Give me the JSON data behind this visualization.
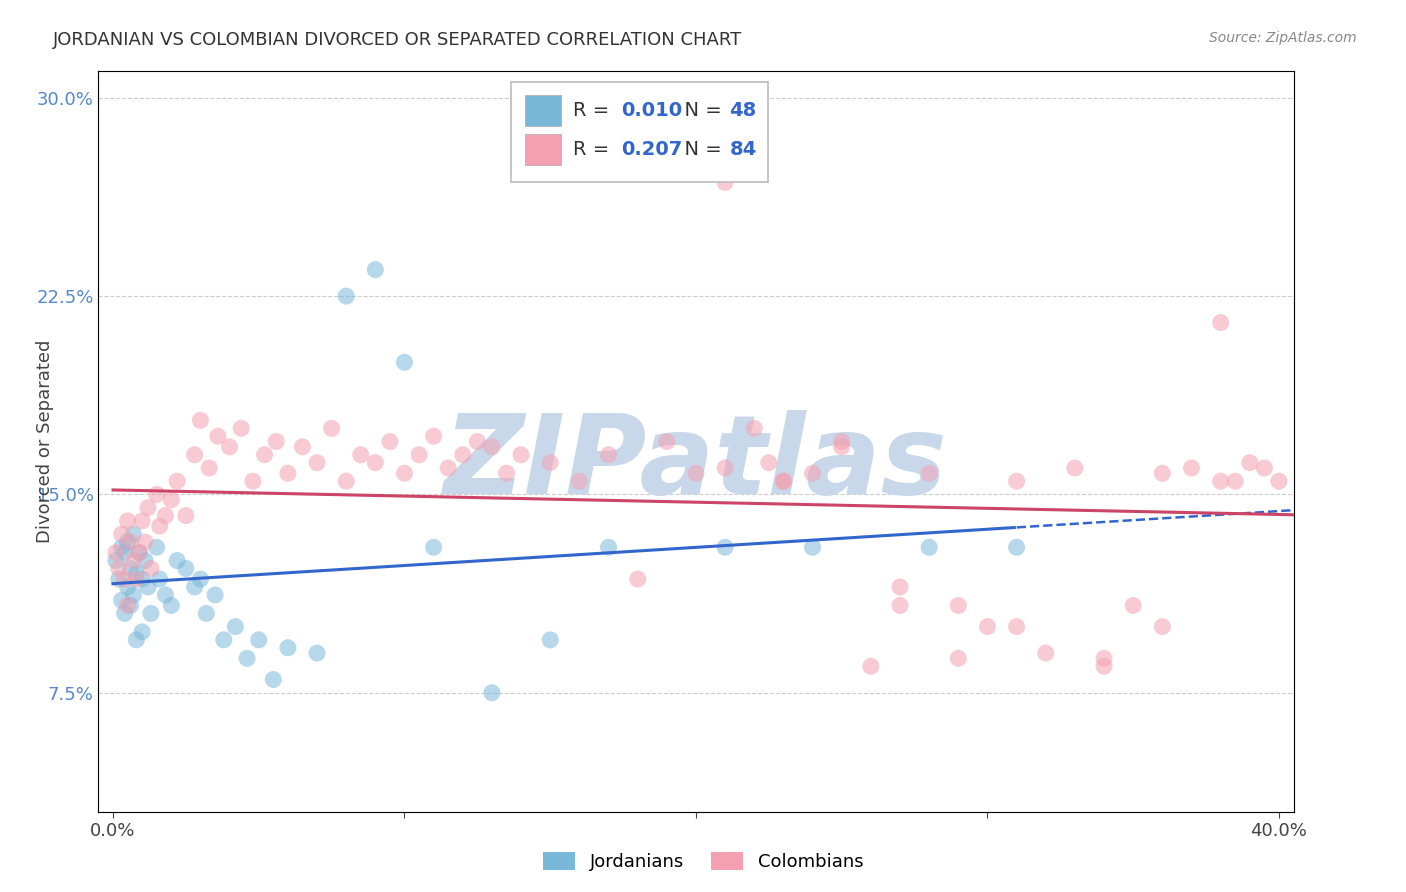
{
  "title": "JORDANIAN VS COLOMBIAN DIVORCED OR SEPARATED CORRELATION CHART",
  "source": "Source: ZipAtlas.com",
  "ylabel": "Divorced or Separated",
  "xlim": [
    -0.005,
    0.405
  ],
  "ylim": [
    0.03,
    0.31
  ],
  "xticks": [
    0.0,
    0.1,
    0.2,
    0.3,
    0.4
  ],
  "xtick_labels": [
    "0.0%",
    "",
    "",
    "",
    "40.0%"
  ],
  "yticks": [
    0.075,
    0.15,
    0.225,
    0.3
  ],
  "ytick_labels": [
    "7.5%",
    "15.0%",
    "22.5%",
    "30.0%"
  ],
  "jordanian_color": "#7ab8d9",
  "colombian_color": "#f4a0b0",
  "jordanian_line_color": "#3366cc",
  "colombian_line_color": "#cc4466",
  "R_jordanian": 0.01,
  "N_jordanian": 48,
  "R_colombian": 0.207,
  "N_colombian": 84,
  "watermark": "ZIPatlas",
  "watermark_color": "#c8d8ea",
  "background_color": "#ffffff",
  "legend_text_color": "#3366cc",
  "legend_r_color": "#3366cc",
  "legend_n_color": "#3366cc",
  "jordanians_x": [
    0.001,
    0.002,
    0.003,
    0.003,
    0.004,
    0.004,
    0.005,
    0.005,
    0.006,
    0.006,
    0.007,
    0.007,
    0.008,
    0.008,
    0.009,
    0.01,
    0.01,
    0.011,
    0.012,
    0.013,
    0.015,
    0.016,
    0.018,
    0.02,
    0.022,
    0.025,
    0.028,
    0.03,
    0.032,
    0.035,
    0.038,
    0.042,
    0.046,
    0.05,
    0.055,
    0.06,
    0.07,
    0.08,
    0.09,
    0.1,
    0.11,
    0.13,
    0.15,
    0.17,
    0.21,
    0.24,
    0.28,
    0.31
  ],
  "jordanians_y": [
    0.125,
    0.118,
    0.13,
    0.11,
    0.128,
    0.105,
    0.132,
    0.115,
    0.122,
    0.108,
    0.135,
    0.112,
    0.12,
    0.095,
    0.128,
    0.118,
    0.098,
    0.125,
    0.115,
    0.105,
    0.13,
    0.118,
    0.112,
    0.108,
    0.125,
    0.122,
    0.115,
    0.118,
    0.105,
    0.112,
    0.095,
    0.1,
    0.088,
    0.095,
    0.08,
    0.092,
    0.09,
    0.225,
    0.235,
    0.2,
    0.13,
    0.075,
    0.095,
    0.13,
    0.13,
    0.13,
    0.13,
    0.13
  ],
  "colombians_x": [
    0.001,
    0.002,
    0.003,
    0.004,
    0.005,
    0.005,
    0.006,
    0.007,
    0.008,
    0.009,
    0.01,
    0.011,
    0.012,
    0.013,
    0.015,
    0.016,
    0.018,
    0.02,
    0.022,
    0.025,
    0.028,
    0.03,
    0.033,
    0.036,
    0.04,
    0.044,
    0.048,
    0.052,
    0.056,
    0.06,
    0.065,
    0.07,
    0.075,
    0.08,
    0.085,
    0.09,
    0.095,
    0.1,
    0.105,
    0.11,
    0.115,
    0.12,
    0.125,
    0.13,
    0.135,
    0.14,
    0.15,
    0.16,
    0.17,
    0.18,
    0.19,
    0.2,
    0.21,
    0.22,
    0.225,
    0.23,
    0.24,
    0.25,
    0.26,
    0.27,
    0.28,
    0.29,
    0.3,
    0.31,
    0.32,
    0.33,
    0.34,
    0.35,
    0.36,
    0.37,
    0.38,
    0.385,
    0.39,
    0.395,
    0.4,
    0.38,
    0.36,
    0.34,
    0.31,
    0.29,
    0.27,
    0.25,
    0.23,
    0.21
  ],
  "colombians_y": [
    0.128,
    0.122,
    0.135,
    0.118,
    0.14,
    0.108,
    0.132,
    0.125,
    0.118,
    0.128,
    0.14,
    0.132,
    0.145,
    0.122,
    0.15,
    0.138,
    0.142,
    0.148,
    0.155,
    0.142,
    0.165,
    0.178,
    0.16,
    0.172,
    0.168,
    0.175,
    0.155,
    0.165,
    0.17,
    0.158,
    0.168,
    0.162,
    0.175,
    0.155,
    0.165,
    0.162,
    0.17,
    0.158,
    0.165,
    0.172,
    0.16,
    0.165,
    0.17,
    0.168,
    0.158,
    0.165,
    0.162,
    0.155,
    0.165,
    0.118,
    0.17,
    0.158,
    0.268,
    0.175,
    0.162,
    0.155,
    0.158,
    0.168,
    0.085,
    0.108,
    0.158,
    0.088,
    0.1,
    0.155,
    0.09,
    0.16,
    0.085,
    0.108,
    0.1,
    0.16,
    0.215,
    0.155,
    0.162,
    0.16,
    0.155,
    0.155,
    0.158,
    0.088,
    0.1,
    0.108,
    0.115,
    0.17,
    0.155,
    0.16
  ]
}
